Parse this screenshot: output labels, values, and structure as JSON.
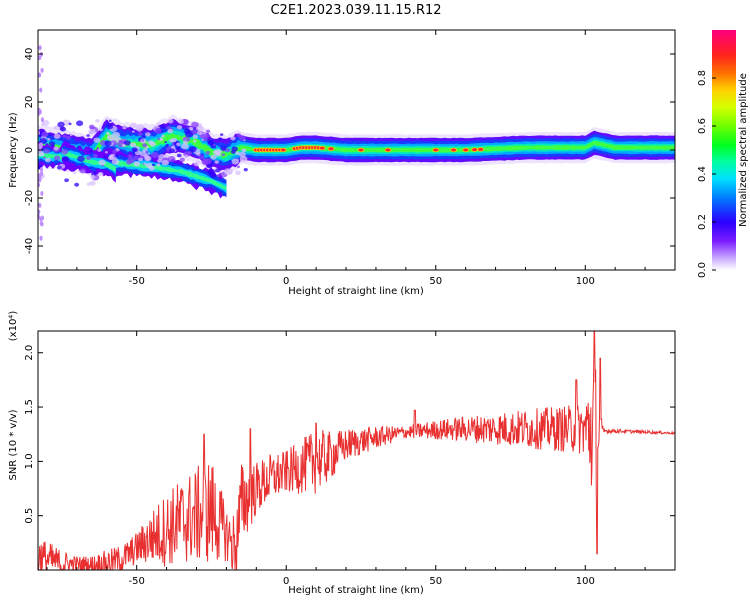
{
  "figure_title": "C2E1.2023.039.11.15.R12",
  "chart_data": [
    {
      "type": "heatmap",
      "xlabel": "Height of straight line (km)",
      "ylabel": "Frequency (Hz)",
      "xlim": [
        -83,
        130
      ],
      "ylim": [
        -50,
        50
      ],
      "xticks": [
        -50,
        0,
        50,
        100
      ],
      "yticks": [
        -40,
        -20,
        0,
        20,
        40
      ],
      "colorbar": {
        "label": "Normalized spectral amplitude",
        "range": [
          0,
          1
        ],
        "ticks": [
          "0.0",
          "0.2",
          "0.4",
          "0.6",
          "0.8"
        ]
      },
      "ridge": {
        "x": [
          -83,
          -75,
          -65,
          -60,
          -55,
          -45,
          -38,
          -30,
          -25,
          -20,
          -15,
          -10,
          0,
          5,
          10,
          20,
          40,
          60,
          80,
          100,
          103,
          110,
          130
        ],
        "y": [
          2,
          0,
          -2,
          6,
          3,
          2,
          6,
          3,
          -1,
          -2,
          1,
          0,
          0,
          1,
          1,
          0,
          0,
          0,
          1,
          1,
          3,
          1,
          1
        ]
      },
      "bands": [
        {
          "x": [
            -83,
            -60,
            -45,
            -35,
            -25,
            -20
          ],
          "y": [
            -2,
            -5,
            -7,
            -9,
            -13,
            -16
          ]
        },
        {
          "x": [
            -75,
            -70,
            -65,
            -60,
            -57
          ],
          "y": [
            -1,
            -3,
            -5,
            -6,
            -8
          ]
        }
      ]
    },
    {
      "type": "line",
      "xlabel": "Height of straight line (km)",
      "ylabel": "SNR (10 * v/v)",
      "yscale_label": "(x10⁴)",
      "xlim": [
        -83,
        130
      ],
      "ylim": [
        0,
        2.2
      ],
      "xticks": [
        -50,
        0,
        50,
        100
      ],
      "yticks": [
        0.5,
        1.0,
        1.5,
        2.0
      ],
      "color": "#e83030",
      "envelope": {
        "x": [
          -83,
          -75,
          -65,
          -55,
          -45,
          -35,
          -25,
          -17,
          -15,
          -10,
          -5,
          0,
          5,
          10,
          15,
          20,
          30,
          40,
          50,
          60,
          70,
          80,
          90,
          100,
          104,
          106,
          110,
          120,
          130
        ],
        "y": [
          0.12,
          0.06,
          0.04,
          0.1,
          0.3,
          0.45,
          0.55,
          0.2,
          0.6,
          0.75,
          0.85,
          0.9,
          0.95,
          1.0,
          1.05,
          1.15,
          1.22,
          1.27,
          1.29,
          1.3,
          1.3,
          1.3,
          1.3,
          1.3,
          1.3,
          1.28,
          1.28,
          1.27,
          1.26
        ]
      },
      "amplitude": {
        "x": [
          -83,
          -70,
          -50,
          -40,
          -30,
          -25,
          -20,
          -15,
          -10,
          0,
          10,
          20,
          40,
          60,
          80,
          95,
          100,
          103,
          104,
          106,
          130
        ],
        "y": [
          0.2,
          0.08,
          0.15,
          0.35,
          0.45,
          0.5,
          0.25,
          0.4,
          0.25,
          0.2,
          0.3,
          0.15,
          0.06,
          0.12,
          0.18,
          0.22,
          0.25,
          0.85,
          0.4,
          0.02,
          0.01
        ]
      },
      "spikes": [
        {
          "x": -27.5,
          "y": 1.25
        },
        {
          "x": -12,
          "y": 1.3
        },
        {
          "x": 10,
          "y": 1.35
        },
        {
          "x": 43,
          "y": 1.47
        },
        {
          "x": 97,
          "y": 1.75
        },
        {
          "x": 103,
          "y": 2.2
        },
        {
          "x": 104,
          "y": 0.15
        },
        {
          "x": 105,
          "y": 1.95
        }
      ]
    }
  ]
}
